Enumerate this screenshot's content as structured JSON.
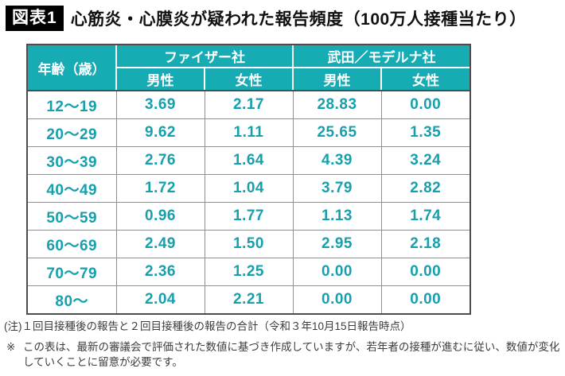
{
  "title": {
    "badge": "図表1",
    "text": "心筋炎・心膜炎が疑われた報告頻度（100万人接種当たり）"
  },
  "table": {
    "age_header": "年齢（歳）",
    "groups": [
      {
        "label": "ファイザー社",
        "male": "男性",
        "female": "女性"
      },
      {
        "label": "武田／モデルナ社",
        "male": "男性",
        "female": "女性"
      }
    ],
    "rows": [
      {
        "age": "12〜19",
        "values": [
          "3.69",
          "2.17",
          "28.83",
          "0.00"
        ]
      },
      {
        "age": "20〜29",
        "values": [
          "9.62",
          "1.11",
          "25.65",
          "1.35"
        ]
      },
      {
        "age": "30〜39",
        "values": [
          "2.76",
          "1.64",
          "4.39",
          "3.24"
        ]
      },
      {
        "age": "40〜49",
        "values": [
          "1.72",
          "1.04",
          "3.79",
          "2.82"
        ]
      },
      {
        "age": "50〜59",
        "values": [
          "0.96",
          "1.77",
          "1.13",
          "1.74"
        ]
      },
      {
        "age": "60〜69",
        "values": [
          "2.49",
          "1.50",
          "2.95",
          "2.18"
        ]
      },
      {
        "age": "70〜79",
        "values": [
          "2.36",
          "1.25",
          "0.00",
          "0.00"
        ]
      },
      {
        "age": "80〜",
        "values": [
          "2.04",
          "2.21",
          "0.00",
          "0.00"
        ]
      }
    ]
  },
  "notes": {
    "note1": "(注)１回目接種後の報告と２回目接種後の報告の合計（令和３年10月15日報告時点）",
    "note2_marker": "※",
    "note2_text": "この表は、最新の審議会で評価された数値に基づき作成していますが、若年者の接種が進むに従い、数値が変化していくことに留意が必要です。"
  },
  "colors": {
    "header_teal": "#17acb3",
    "value_teal": "#16a0ae",
    "outer_border": "#4d4d4d",
    "grid_line": "#8f8f8f",
    "badge_bg": "#000000"
  },
  "chart_data": {
    "type": "table",
    "title": "心筋炎・心膜炎が疑われた報告頻度（100万人接種当たり）",
    "categories": [
      "12〜19",
      "20〜29",
      "30〜39",
      "40〜49",
      "50〜59",
      "60〜69",
      "70〜79",
      "80〜"
    ],
    "series": [
      {
        "name": "ファイザー社 男性",
        "values": [
          3.69,
          9.62,
          2.76,
          1.72,
          0.96,
          2.49,
          2.36,
          2.04
        ]
      },
      {
        "name": "ファイザー社 女性",
        "values": [
          2.17,
          1.11,
          1.64,
          1.04,
          1.77,
          1.5,
          1.25,
          2.21
        ]
      },
      {
        "name": "武田／モデルナ社 男性",
        "values": [
          28.83,
          25.65,
          4.39,
          3.79,
          1.13,
          2.95,
          0.0,
          0.0
        ]
      },
      {
        "name": "武田／モデルナ社 女性",
        "values": [
          0.0,
          1.35,
          3.24,
          2.82,
          1.74,
          2.18,
          0.0,
          0.0
        ]
      }
    ],
    "notes": [
      "(注)１回目接種後の報告と２回目接種後の報告の合計（令和３年10月15日報告時点）",
      "※ この表は、最新の審議会で評価された数値に基づき作成していますが、若年者の接種が進むに従い、数値が変化していくことに留意が必要です。"
    ]
  }
}
